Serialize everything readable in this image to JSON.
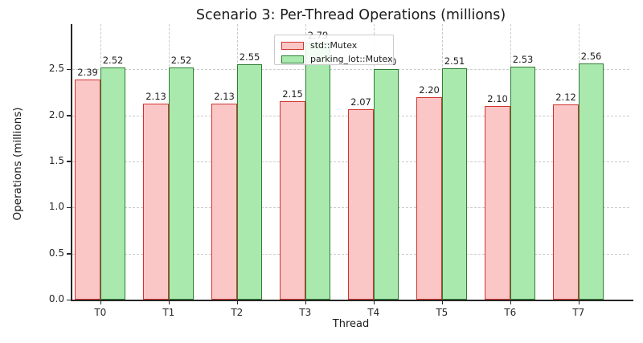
{
  "title": "Scenario 3: Per-Thread Operations (millions)",
  "colors": {
    "background": "#ffffff",
    "spine": "#262626",
    "grid": "#cbcbcb",
    "text": "#1c1c1c",
    "std_mutex_fill": "#fbc6c6",
    "std_mutex_edge": "#d0342e",
    "parking_lot_fill": "#a9e9ae",
    "parking_lot_edge": "#2e7d33"
  },
  "legend": {
    "entries": [
      "std::Mutex",
      "parking_lot::Mutex"
    ],
    "position": "upper-center"
  },
  "chart_data": {
    "type": "bar",
    "title": "Scenario 3: Per-Thread Operations (millions)",
    "xlabel": "Thread",
    "ylabel": "Operations (millions)",
    "categories": [
      "T0",
      "T1",
      "T2",
      "T3",
      "T4",
      "T5",
      "T6",
      "T7"
    ],
    "series": [
      {
        "name": "std::Mutex",
        "values": [
          2.39,
          2.13,
          2.13,
          2.15,
          2.07,
          2.2,
          2.1,
          2.12
        ],
        "fill": "#fbc6c6",
        "edge": "#d0342e"
      },
      {
        "name": "parking_lot::Mutex",
        "values": [
          2.52,
          2.52,
          2.55,
          2.79,
          2.5,
          2.51,
          2.53,
          2.56
        ],
        "fill": "#a9e9ae",
        "edge": "#2e7d33"
      }
    ],
    "bar_value_labels": true,
    "yticks": [
      0.0,
      0.5,
      1.0,
      1.5,
      2.0,
      2.5
    ],
    "ylim": [
      0,
      2.99
    ],
    "grid": "both-dashed",
    "legend_position": "upper-center"
  }
}
